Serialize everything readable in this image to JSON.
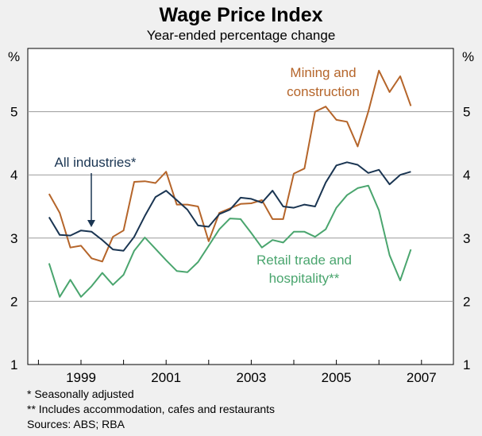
{
  "chart_data": {
    "type": "line",
    "title": "Wage Price Index",
    "subtitle": "Year-ended percentage change",
    "unit_left": "%",
    "unit_right": "%",
    "xlim": [
      1997.75,
      2007.75
    ],
    "ylim": [
      1,
      6
    ],
    "y_ticks": [
      1,
      2,
      3,
      4,
      5
    ],
    "x_tick_labels": [
      "1999",
      "2001",
      "2003",
      "2005",
      "2007"
    ],
    "x_tick_label_positions": [
      1999.0,
      2001.0,
      2003.0,
      2005.0,
      2007.0
    ],
    "x_ticks_minor": [
      1998,
      1999,
      2000,
      2001,
      2002,
      2003,
      2004,
      2005,
      2006,
      2007
    ],
    "x": [
      1998.25,
      1998.5,
      1998.75,
      1999.0,
      1999.25,
      1999.5,
      1999.75,
      2000.0,
      2000.25,
      2000.5,
      2000.75,
      2001.0,
      2001.25,
      2001.5,
      2001.75,
      2002.0,
      2002.25,
      2002.5,
      2002.75,
      2003.0,
      2003.25,
      2003.5,
      2003.75,
      2004.0,
      2004.25,
      2004.5,
      2004.75,
      2005.0,
      2005.25,
      2005.5,
      2005.75,
      2006.0,
      2006.25,
      2006.5,
      2006.75
    ],
    "series": [
      {
        "name": "Mining and construction",
        "color": "#b5652a",
        "values": [
          3.7,
          3.4,
          2.85,
          2.88,
          2.68,
          2.63,
          3.02,
          3.12,
          3.89,
          3.9,
          3.87,
          4.05,
          3.53,
          3.53,
          3.5,
          2.95,
          3.4,
          3.47,
          3.54,
          3.55,
          3.6,
          3.3,
          3.3,
          4.02,
          4.1,
          5.0,
          5.08,
          4.87,
          4.84,
          4.45,
          5.0,
          5.65,
          5.31,
          5.56,
          5.09
        ]
      },
      {
        "name": "All industries*",
        "color": "#1a3552",
        "values": [
          3.33,
          3.05,
          3.04,
          3.12,
          3.1,
          2.97,
          2.82,
          2.8,
          3.02,
          3.35,
          3.65,
          3.75,
          3.6,
          3.45,
          3.2,
          3.18,
          3.38,
          3.45,
          3.64,
          3.62,
          3.56,
          3.75,
          3.5,
          3.48,
          3.53,
          3.5,
          3.88,
          4.15,
          4.2,
          4.16,
          4.03,
          4.08,
          3.85,
          4.0,
          4.05
        ]
      },
      {
        "name": "Retail trade and hospitality**",
        "color": "#4aa56e",
        "values": [
          2.6,
          2.07,
          2.34,
          2.07,
          2.24,
          2.45,
          2.26,
          2.42,
          2.8,
          3.01,
          2.83,
          2.65,
          2.48,
          2.46,
          2.62,
          2.88,
          3.14,
          3.31,
          3.3,
          3.08,
          2.85,
          2.97,
          2.93,
          3.1,
          3.1,
          3.02,
          3.14,
          3.48,
          3.68,
          3.79,
          3.83,
          3.44,
          2.73,
          2.33,
          2.82
        ]
      }
    ],
    "annotations": {
      "mining_line1": "Mining and",
      "mining_line2": "construction",
      "all_industries": "All industries*",
      "retail_line1": "Retail trade and",
      "retail_line2": "hospitality**"
    },
    "notes": [
      "*  Seasonally adjusted",
      "** Includes accommodation, cafes and restaurants",
      "Sources: ABS; RBA"
    ]
  }
}
